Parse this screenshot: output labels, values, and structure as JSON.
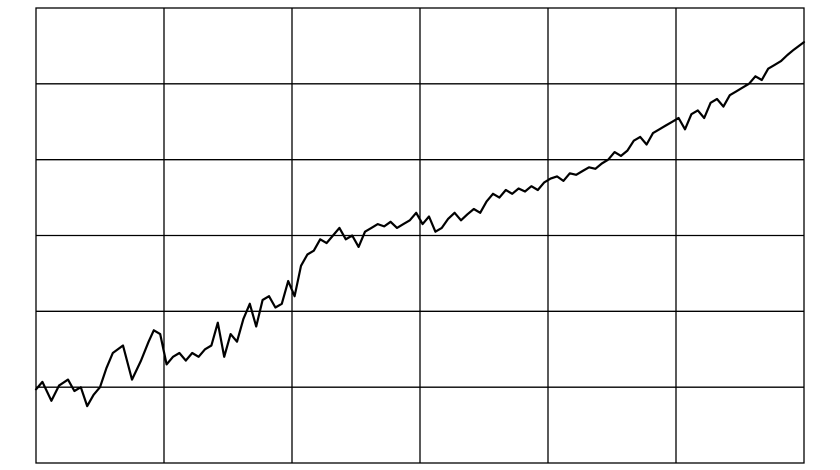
{
  "chart_data": {
    "type": "line",
    "title": "",
    "xlabel": "",
    "ylabel": "",
    "xlim": [
      0,
      6
    ],
    "ylim": [
      0,
      6
    ],
    "grid": true,
    "legend": "none",
    "colors": {
      "line": "#000000",
      "grid": "#000000",
      "background": "#ffffff"
    },
    "series": [
      {
        "x": [
          0.0,
          0.05,
          0.12,
          0.18,
          0.25,
          0.3,
          0.35,
          0.4,
          0.45,
          0.5,
          0.55,
          0.6,
          0.68,
          0.75,
          0.82,
          0.88,
          0.92,
          0.97,
          1.02,
          1.07,
          1.12,
          1.17,
          1.22,
          1.27,
          1.32,
          1.37,
          1.42,
          1.47,
          1.52,
          1.57,
          1.62,
          1.67,
          1.72,
          1.77,
          1.82,
          1.87,
          1.92,
          1.97,
          2.02,
          2.07,
          2.12,
          2.17,
          2.22,
          2.27,
          2.32,
          2.37,
          2.42,
          2.47,
          2.52,
          2.57,
          2.62,
          2.67,
          2.72,
          2.77,
          2.82,
          2.87,
          2.92,
          2.97,
          3.02,
          3.07,
          3.12,
          3.17,
          3.22,
          3.27,
          3.32,
          3.37,
          3.42,
          3.47,
          3.52,
          3.57,
          3.62,
          3.67,
          3.72,
          3.77,
          3.82,
          3.87,
          3.92,
          3.97,
          4.02,
          4.07,
          4.12,
          4.17,
          4.22,
          4.27,
          4.32,
          4.37,
          4.42,
          4.47,
          4.52,
          4.57,
          4.62,
          4.67,
          4.72,
          4.77,
          4.82,
          4.87,
          4.92,
          4.97,
          5.02,
          5.07,
          5.12,
          5.17,
          5.22,
          5.27,
          5.32,
          5.37,
          5.42,
          5.47,
          5.52,
          5.57,
          5.62,
          5.67,
          5.72,
          5.77,
          5.82,
          5.87,
          5.92,
          6.0
        ],
        "y": [
          0.97,
          1.07,
          0.82,
          1.02,
          1.1,
          0.95,
          1.0,
          0.75,
          0.9,
          1.0,
          1.25,
          1.45,
          1.55,
          1.1,
          1.35,
          1.6,
          1.75,
          1.7,
          1.3,
          1.4,
          1.45,
          1.35,
          1.45,
          1.4,
          1.5,
          1.55,
          1.85,
          1.4,
          1.7,
          1.6,
          1.9,
          2.1,
          1.8,
          2.15,
          2.2,
          2.05,
          2.1,
          2.4,
          2.2,
          2.6,
          2.75,
          2.8,
          2.95,
          2.9,
          3.0,
          3.1,
          2.95,
          3.0,
          2.85,
          3.05,
          3.1,
          3.15,
          3.12,
          3.18,
          3.1,
          3.15,
          3.2,
          3.3,
          3.15,
          3.25,
          3.05,
          3.1,
          3.22,
          3.3,
          3.2,
          3.28,
          3.35,
          3.3,
          3.45,
          3.55,
          3.5,
          3.6,
          3.55,
          3.62,
          3.58,
          3.65,
          3.6,
          3.7,
          3.75,
          3.78,
          3.72,
          3.82,
          3.8,
          3.85,
          3.9,
          3.88,
          3.95,
          4.0,
          4.1,
          4.05,
          4.12,
          4.25,
          4.3,
          4.2,
          4.35,
          4.4,
          4.45,
          4.5,
          4.55,
          4.4,
          4.6,
          4.65,
          4.55,
          4.75,
          4.8,
          4.7,
          4.85,
          4.9,
          4.95,
          5.0,
          5.1,
          5.05,
          5.2,
          5.25,
          5.3,
          5.38,
          5.45,
          5.55
        ]
      }
    ]
  }
}
